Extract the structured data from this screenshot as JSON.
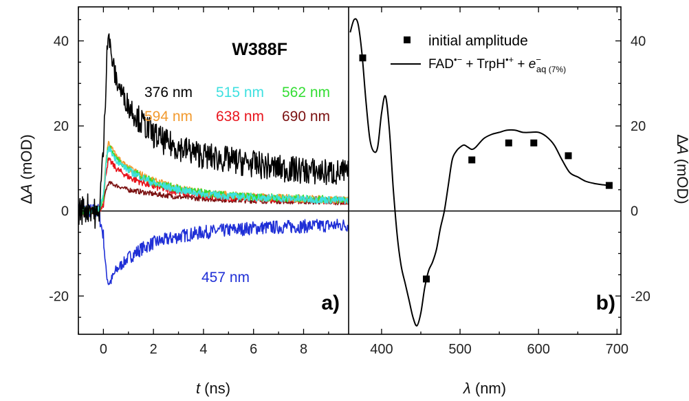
{
  "chart_data": [
    {
      "panel_label": "a)",
      "type": "line",
      "title": "W388F",
      "xlabel": "t (ns)",
      "ylabel": "ΔA (mOD)",
      "xlim": [
        -1,
        9.8
      ],
      "ylim": [
        -29,
        48
      ],
      "xticks": [
        0,
        2,
        4,
        6,
        8
      ],
      "yticks": [
        -20,
        0,
        20,
        40
      ],
      "note": "noisy transient traces; values are approximate, fine-scale noise drawn schematically",
      "series": [
        {
          "name": "376 nm",
          "color": "#000000",
          "x": [
            -1.0,
            -0.5,
            -0.2,
            0.0,
            0.1,
            0.15,
            0.2,
            0.3,
            0.5,
            0.8,
            1.0,
            1.5,
            2.0,
            2.5,
            3.0,
            4.0,
            5.0,
            6.0,
            7.0,
            8.0,
            9.0,
            9.8
          ],
          "y": [
            0,
            1,
            -2,
            14,
            30,
            40,
            42,
            37,
            31,
            27,
            25,
            21,
            18,
            16,
            15,
            13,
            12,
            11,
            10,
            9.5,
            9,
            9
          ]
        },
        {
          "name": "515 nm",
          "color": "#3fe0e0",
          "x": [
            -1.0,
            -0.2,
            0.0,
            0.1,
            0.2,
            0.3,
            0.5,
            1.0,
            2.0,
            3.0,
            4.0,
            5.0,
            6.0,
            7.0,
            8.0,
            9.0,
            9.8
          ],
          "y": [
            0,
            0,
            3,
            11,
            15,
            14,
            12,
            9.5,
            6.5,
            5,
            4,
            3.5,
            3.2,
            3,
            2.8,
            2.6,
            2.5
          ]
        },
        {
          "name": "562 nm",
          "color": "#33dd33",
          "x": [
            -1.0,
            -0.2,
            0.0,
            0.1,
            0.2,
            0.3,
            0.5,
            1.0,
            2.0,
            3.0,
            4.0,
            5.0,
            6.0,
            7.0,
            8.0,
            9.0,
            9.8
          ],
          "y": [
            0,
            0,
            3,
            11,
            15,
            14.5,
            12.5,
            9.8,
            6.8,
            5.2,
            4.2,
            3.6,
            3.3,
            3.1,
            2.9,
            2.7,
            2.6
          ]
        },
        {
          "name": "594 nm",
          "color": "#f29a2e",
          "x": [
            -1.0,
            -0.2,
            0.0,
            0.1,
            0.2,
            0.3,
            0.5,
            1.0,
            2.0,
            3.0,
            4.0,
            5.0,
            6.0,
            7.0,
            8.0,
            9.0,
            9.8
          ],
          "y": [
            0,
            0,
            3,
            12,
            16,
            15,
            13,
            10,
            7,
            5.3,
            4.3,
            3.7,
            3.4,
            3.1,
            2.9,
            2.7,
            2.6
          ]
        },
        {
          "name": "638 nm",
          "color": "#e8141c",
          "x": [
            -1.0,
            -0.2,
            0.0,
            0.1,
            0.2,
            0.3,
            0.5,
            1.0,
            2.0,
            3.0,
            4.0,
            5.0,
            6.0,
            7.0,
            8.0,
            9.0,
            9.8
          ],
          "y": [
            0,
            0,
            2,
            9,
            12,
            11.5,
            10,
            8,
            5.8,
            4.5,
            3.7,
            3.2,
            3,
            2.8,
            2.6,
            2.5,
            2.4
          ]
        },
        {
          "name": "690 nm",
          "color": "#7a1010",
          "x": [
            -1.0,
            -0.2,
            0.0,
            0.1,
            0.2,
            0.3,
            0.5,
            1.0,
            2.0,
            3.0,
            4.0,
            5.0,
            6.0,
            7.0,
            8.0,
            9.0,
            9.8
          ],
          "y": [
            0,
            0,
            1.5,
            5,
            6.5,
            6.5,
            6,
            5,
            4,
            3.3,
            2.9,
            2.6,
            2.4,
            2.3,
            2.2,
            2.1,
            2
          ]
        },
        {
          "name": "457 nm",
          "color": "#1f2fd6",
          "x": [
            -1.0,
            -0.2,
            0.0,
            0.1,
            0.2,
            0.3,
            0.5,
            1.0,
            1.5,
            2.0,
            3.0,
            4.0,
            5.0,
            6.0,
            7.0,
            8.0,
            9.0,
            9.8
          ],
          "y": [
            0,
            0,
            -6,
            -14,
            -17,
            -16.5,
            -14,
            -11,
            -9,
            -7.5,
            -6,
            -5,
            -4.5,
            -4,
            -3.8,
            -3.6,
            -3.4,
            -3.3
          ]
        }
      ]
    },
    {
      "panel_label": "b)",
      "type": "line",
      "xlabel": "λ (nm)",
      "ylabel": "ΔA (mOD)",
      "xlim": [
        358,
        705
      ],
      "ylim": [
        -29,
        48
      ],
      "xticks": [
        400,
        500,
        600,
        700
      ],
      "yticks": [
        -20,
        0,
        20,
        40
      ],
      "legend_position": "top-right",
      "legend": {
        "square_label": "initial amplitude",
        "line_label": "FAD•− + TrpH•+ + e−aq (7%)"
      },
      "curve": {
        "x": [
          360,
          365,
          370,
          375,
          380,
          385,
          390,
          395,
          400,
          405,
          410,
          415,
          420,
          425,
          430,
          435,
          440,
          445,
          450,
          455,
          460,
          465,
          470,
          475,
          480,
          485,
          490,
          495,
          500,
          505,
          510,
          515,
          520,
          530,
          540,
          550,
          560,
          570,
          580,
          590,
          600,
          610,
          620,
          630,
          640,
          650,
          660,
          670,
          680,
          690
        ],
        "y": [
          42,
          45,
          44,
          37,
          26,
          17,
          14,
          15,
          23,
          27,
          19,
          5,
          -6,
          -13,
          -17,
          -21,
          -25,
          -27,
          -24,
          -18,
          -14,
          -12,
          -9,
          -4,
          0,
          6,
          12,
          14,
          15,
          15.5,
          15,
          14.5,
          15,
          17,
          18,
          18.5,
          19,
          19,
          18.5,
          18.5,
          18.5,
          17.5,
          15.5,
          12,
          9,
          8,
          7,
          6.5,
          6.2,
          6
        ]
      },
      "points": {
        "x": [
          376,
          457,
          515,
          562,
          594,
          638,
          690
        ],
        "y": [
          36,
          -16,
          12,
          16,
          16,
          13,
          6
        ]
      }
    }
  ]
}
